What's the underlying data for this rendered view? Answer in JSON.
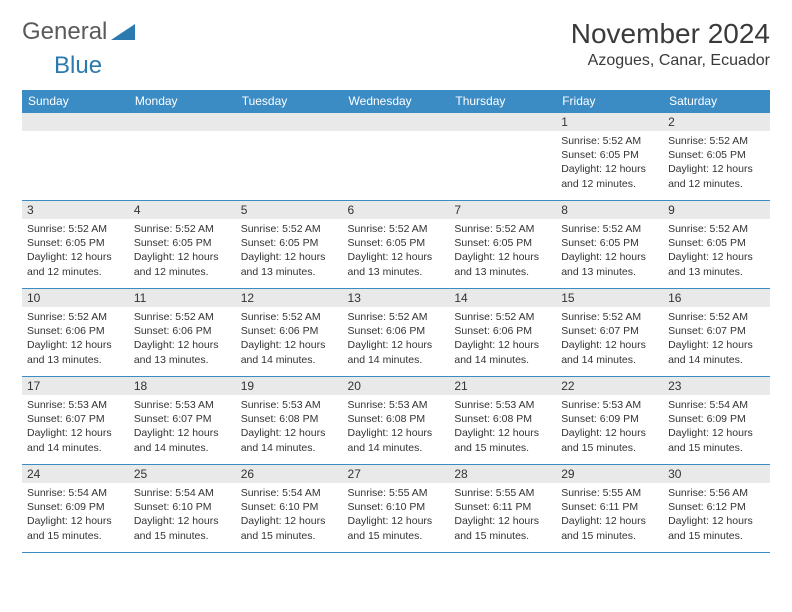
{
  "logo": {
    "text1": "General",
    "text2": "Blue",
    "shape_fill": "#2a7ab0"
  },
  "title": "November 2024",
  "location": "Azogues, Canar, Ecuador",
  "colors": {
    "header_bg": "#3b8bc5",
    "header_text": "#ffffff",
    "daynum_bg": "#e9e9e9",
    "border": "#3b8bc5",
    "text": "#333333"
  },
  "day_names": [
    "Sunday",
    "Monday",
    "Tuesday",
    "Wednesday",
    "Thursday",
    "Friday",
    "Saturday"
  ],
  "weeks": [
    [
      {
        "empty": true
      },
      {
        "empty": true
      },
      {
        "empty": true
      },
      {
        "empty": true
      },
      {
        "empty": true
      },
      {
        "num": "1",
        "sunrise": "Sunrise: 5:52 AM",
        "sunset": "Sunset: 6:05 PM",
        "daylight": "Daylight: 12 hours and 12 minutes."
      },
      {
        "num": "2",
        "sunrise": "Sunrise: 5:52 AM",
        "sunset": "Sunset: 6:05 PM",
        "daylight": "Daylight: 12 hours and 12 minutes."
      }
    ],
    [
      {
        "num": "3",
        "sunrise": "Sunrise: 5:52 AM",
        "sunset": "Sunset: 6:05 PM",
        "daylight": "Daylight: 12 hours and 12 minutes."
      },
      {
        "num": "4",
        "sunrise": "Sunrise: 5:52 AM",
        "sunset": "Sunset: 6:05 PM",
        "daylight": "Daylight: 12 hours and 12 minutes."
      },
      {
        "num": "5",
        "sunrise": "Sunrise: 5:52 AM",
        "sunset": "Sunset: 6:05 PM",
        "daylight": "Daylight: 12 hours and 13 minutes."
      },
      {
        "num": "6",
        "sunrise": "Sunrise: 5:52 AM",
        "sunset": "Sunset: 6:05 PM",
        "daylight": "Daylight: 12 hours and 13 minutes."
      },
      {
        "num": "7",
        "sunrise": "Sunrise: 5:52 AM",
        "sunset": "Sunset: 6:05 PM",
        "daylight": "Daylight: 12 hours and 13 minutes."
      },
      {
        "num": "8",
        "sunrise": "Sunrise: 5:52 AM",
        "sunset": "Sunset: 6:05 PM",
        "daylight": "Daylight: 12 hours and 13 minutes."
      },
      {
        "num": "9",
        "sunrise": "Sunrise: 5:52 AM",
        "sunset": "Sunset: 6:05 PM",
        "daylight": "Daylight: 12 hours and 13 minutes."
      }
    ],
    [
      {
        "num": "10",
        "sunrise": "Sunrise: 5:52 AM",
        "sunset": "Sunset: 6:06 PM",
        "daylight": "Daylight: 12 hours and 13 minutes."
      },
      {
        "num": "11",
        "sunrise": "Sunrise: 5:52 AM",
        "sunset": "Sunset: 6:06 PM",
        "daylight": "Daylight: 12 hours and 13 minutes."
      },
      {
        "num": "12",
        "sunrise": "Sunrise: 5:52 AM",
        "sunset": "Sunset: 6:06 PM",
        "daylight": "Daylight: 12 hours and 14 minutes."
      },
      {
        "num": "13",
        "sunrise": "Sunrise: 5:52 AM",
        "sunset": "Sunset: 6:06 PM",
        "daylight": "Daylight: 12 hours and 14 minutes."
      },
      {
        "num": "14",
        "sunrise": "Sunrise: 5:52 AM",
        "sunset": "Sunset: 6:06 PM",
        "daylight": "Daylight: 12 hours and 14 minutes."
      },
      {
        "num": "15",
        "sunrise": "Sunrise: 5:52 AM",
        "sunset": "Sunset: 6:07 PM",
        "daylight": "Daylight: 12 hours and 14 minutes."
      },
      {
        "num": "16",
        "sunrise": "Sunrise: 5:52 AM",
        "sunset": "Sunset: 6:07 PM",
        "daylight": "Daylight: 12 hours and 14 minutes."
      }
    ],
    [
      {
        "num": "17",
        "sunrise": "Sunrise: 5:53 AM",
        "sunset": "Sunset: 6:07 PM",
        "daylight": "Daylight: 12 hours and 14 minutes."
      },
      {
        "num": "18",
        "sunrise": "Sunrise: 5:53 AM",
        "sunset": "Sunset: 6:07 PM",
        "daylight": "Daylight: 12 hours and 14 minutes."
      },
      {
        "num": "19",
        "sunrise": "Sunrise: 5:53 AM",
        "sunset": "Sunset: 6:08 PM",
        "daylight": "Daylight: 12 hours and 14 minutes."
      },
      {
        "num": "20",
        "sunrise": "Sunrise: 5:53 AM",
        "sunset": "Sunset: 6:08 PM",
        "daylight": "Daylight: 12 hours and 14 minutes."
      },
      {
        "num": "21",
        "sunrise": "Sunrise: 5:53 AM",
        "sunset": "Sunset: 6:08 PM",
        "daylight": "Daylight: 12 hours and 15 minutes."
      },
      {
        "num": "22",
        "sunrise": "Sunrise: 5:53 AM",
        "sunset": "Sunset: 6:09 PM",
        "daylight": "Daylight: 12 hours and 15 minutes."
      },
      {
        "num": "23",
        "sunrise": "Sunrise: 5:54 AM",
        "sunset": "Sunset: 6:09 PM",
        "daylight": "Daylight: 12 hours and 15 minutes."
      }
    ],
    [
      {
        "num": "24",
        "sunrise": "Sunrise: 5:54 AM",
        "sunset": "Sunset: 6:09 PM",
        "daylight": "Daylight: 12 hours and 15 minutes."
      },
      {
        "num": "25",
        "sunrise": "Sunrise: 5:54 AM",
        "sunset": "Sunset: 6:10 PM",
        "daylight": "Daylight: 12 hours and 15 minutes."
      },
      {
        "num": "26",
        "sunrise": "Sunrise: 5:54 AM",
        "sunset": "Sunset: 6:10 PM",
        "daylight": "Daylight: 12 hours and 15 minutes."
      },
      {
        "num": "27",
        "sunrise": "Sunrise: 5:55 AM",
        "sunset": "Sunset: 6:10 PM",
        "daylight": "Daylight: 12 hours and 15 minutes."
      },
      {
        "num": "28",
        "sunrise": "Sunrise: 5:55 AM",
        "sunset": "Sunset: 6:11 PM",
        "daylight": "Daylight: 12 hours and 15 minutes."
      },
      {
        "num": "29",
        "sunrise": "Sunrise: 5:55 AM",
        "sunset": "Sunset: 6:11 PM",
        "daylight": "Daylight: 12 hours and 15 minutes."
      },
      {
        "num": "30",
        "sunrise": "Sunrise: 5:56 AM",
        "sunset": "Sunset: 6:12 PM",
        "daylight": "Daylight: 12 hours and 15 minutes."
      }
    ]
  ]
}
